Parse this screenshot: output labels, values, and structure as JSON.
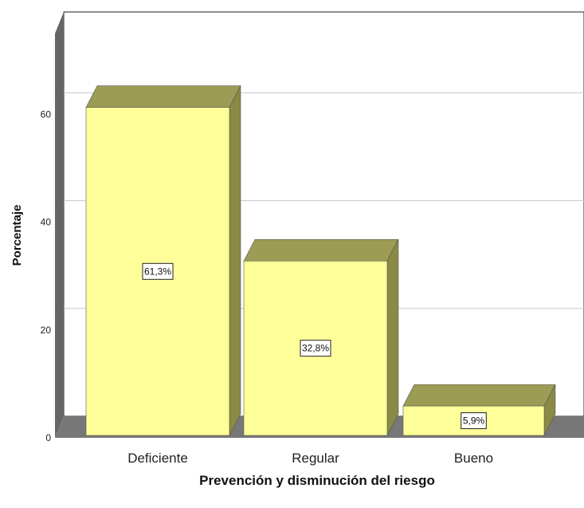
{
  "chart_data": {
    "type": "bar",
    "categories": [
      "Deficiente",
      "Regular",
      "Bueno"
    ],
    "values": [
      61.3,
      32.8,
      5.9
    ],
    "data_labels": [
      "61,3%",
      "32,8%",
      "5,9%"
    ],
    "xlabel": "Prevención y  disminución del riesgo",
    "ylabel": "Porcentaje",
    "ylim": [
      0,
      75
    ],
    "yticks": [
      "0",
      "20",
      "40",
      "60"
    ],
    "grid": true,
    "colors": {
      "bar_front": "#ffff99",
      "bar_top": "#9c9c55",
      "bar_side": "#8a8a44",
      "wall_side": "#666666",
      "floor": "#777777",
      "gridline": "#c8c8c8"
    }
  }
}
